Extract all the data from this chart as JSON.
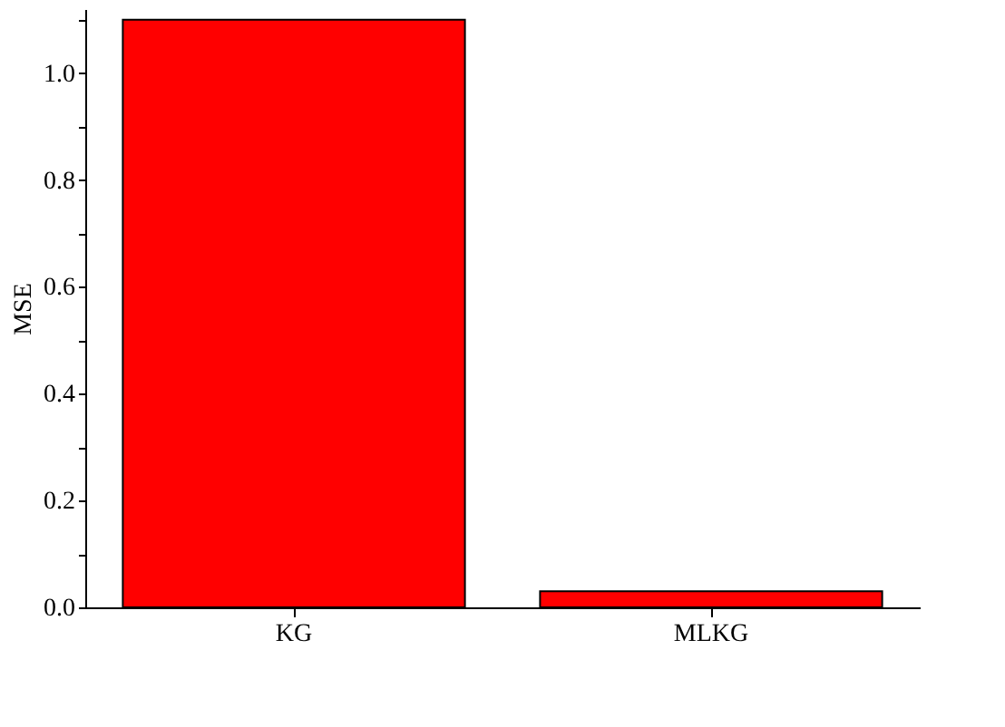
{
  "chart_data": {
    "type": "bar",
    "ylabel": "MSE",
    "categories": [
      "KG",
      "MLKG"
    ],
    "values": [
      1.1,
      0.03
    ],
    "color": "#ff0000",
    "ylim": [
      0,
      1.12
    ],
    "yticks": [
      {
        "value": 0,
        "label": "0.0"
      },
      {
        "value": 0.1,
        "label": null
      },
      0.2,
      {
        "value": 0.3,
        "label": null
      },
      0.4,
      {
        "value": 0.5,
        "label": null
      },
      0.6,
      {
        "value": 0.7,
        "label": null
      },
      0.8,
      {
        "value": 0.9,
        "label": null
      },
      {
        "value": 1,
        "label": "1.0"
      },
      {
        "value": 1.1,
        "label": null
      }
    ],
    "grid": false
  }
}
